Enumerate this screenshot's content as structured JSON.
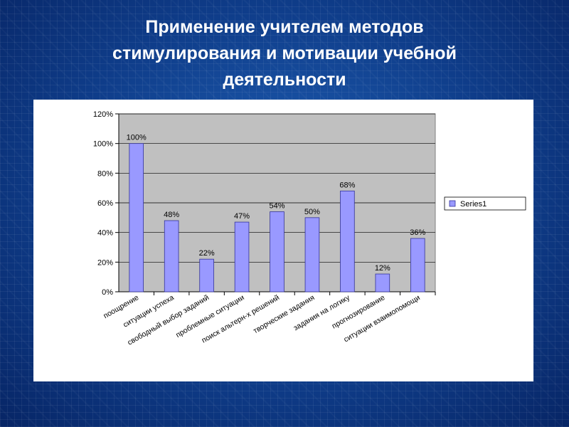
{
  "slide": {
    "title_lines": [
      "Применение учителем методов",
      "стимулирования и мотивации учебной",
      "деятельности"
    ]
  },
  "colors": {
    "bar_fill": "#9999ff",
    "bar_stroke": "#333399",
    "plot_bg": "#c0c0c0"
  },
  "chart_data": {
    "type": "bar",
    "categories": [
      "поощрение",
      "ситуации успеха",
      "свободный выбор заданий",
      "проблемные ситуации",
      "поиск альтерн-х решений",
      "творческие задания",
      "задания на логику",
      "прогнозирование",
      "ситуации взаимопомощи"
    ],
    "series": [
      {
        "name": "Series1",
        "values": [
          100,
          48,
          22,
          47,
          54,
          50,
          68,
          12,
          36
        ]
      }
    ],
    "data_labels": [
      "100%",
      "48%",
      "22%",
      "47%",
      "54%",
      "50%",
      "68%",
      "12%",
      "36%"
    ],
    "y_ticks": [
      "0%",
      "20%",
      "40%",
      "60%",
      "80%",
      "100%",
      "120%"
    ],
    "ylim": [
      0,
      120
    ],
    "legend_position": "right",
    "grid": true
  }
}
